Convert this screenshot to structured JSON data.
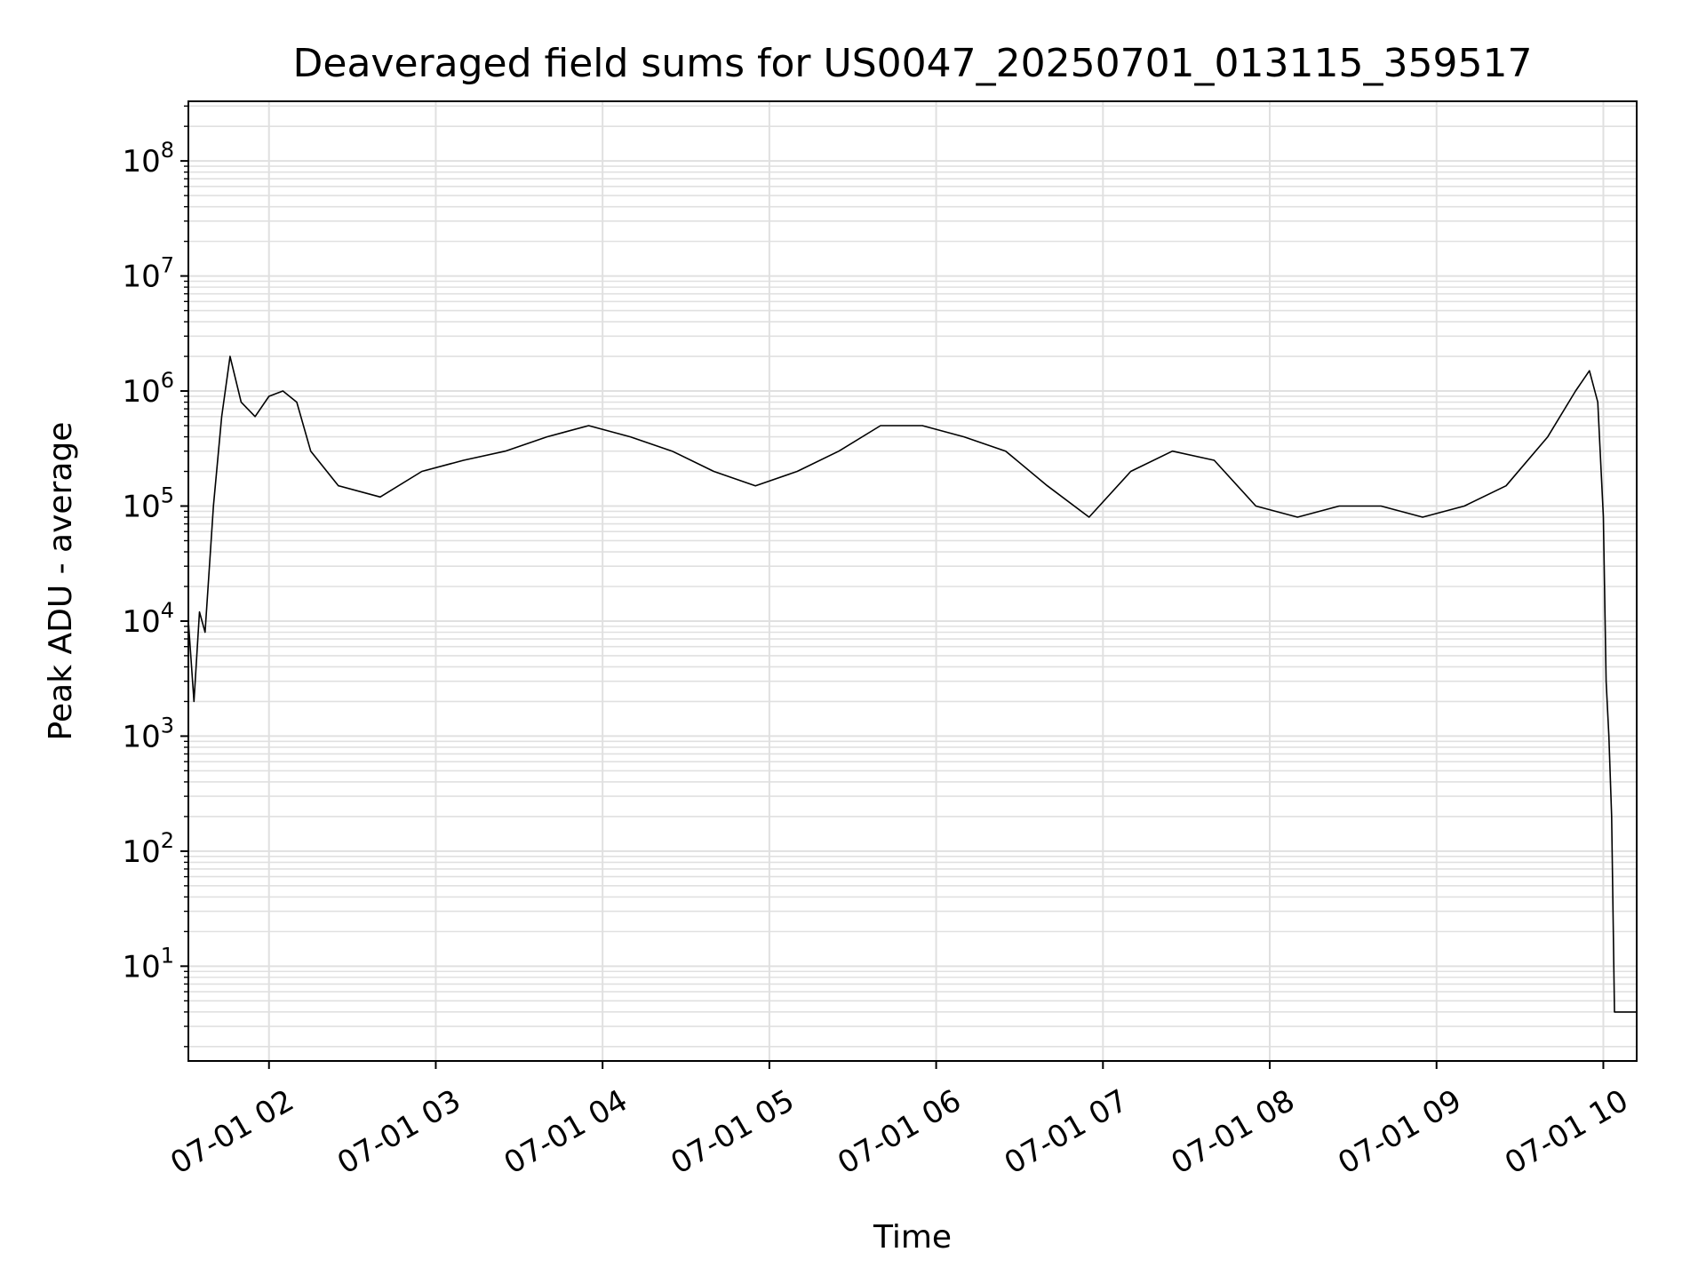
{
  "chart_data": {
    "type": "line",
    "title": "Deaveraged field sums for US0047_20250701_013115_359517",
    "xlabel": "Time",
    "ylabel": "Peak ADU - average",
    "y_scale": "log",
    "grid": true,
    "x_ticks": [
      "07-01 02",
      "07-01 03",
      "07-01 04",
      "07-01 05",
      "07-01 06",
      "07-01 07",
      "07-01 08",
      "07-01 09",
      "07-01 10"
    ],
    "y_ticks": [
      {
        "base": "10",
        "exp": "1"
      },
      {
        "base": "10",
        "exp": "2"
      },
      {
        "base": "10",
        "exp": "3"
      },
      {
        "base": "10",
        "exp": "4"
      },
      {
        "base": "10",
        "exp": "5"
      },
      {
        "base": "10",
        "exp": "6"
      },
      {
        "base": "10",
        "exp": "7"
      },
      {
        "base": "10",
        "exp": "8"
      }
    ],
    "xlim": [
      "2025-07-01 01:31",
      "2025-07-01 10:12"
    ],
    "ylim": [
      1.5,
      330000000
    ],
    "line_color": "#000000",
    "grid_color": "#e0e0e0",
    "series": [
      {
        "x": [
          "2025-07-01 01:31",
          "2025-07-01 01:33",
          "2025-07-01 01:35",
          "2025-07-01 01:37",
          "2025-07-01 01:40",
          "2025-07-01 01:43",
          "2025-07-01 01:46",
          "2025-07-01 01:50",
          "2025-07-01 01:55",
          "2025-07-01 02:00",
          "2025-07-01 02:05",
          "2025-07-01 02:10",
          "2025-07-01 02:15",
          "2025-07-01 02:25",
          "2025-07-01 02:40",
          "2025-07-01 02:55",
          "2025-07-01 03:10",
          "2025-07-01 03:25",
          "2025-07-01 03:40",
          "2025-07-01 03:55",
          "2025-07-01 04:10",
          "2025-07-01 04:25",
          "2025-07-01 04:40",
          "2025-07-01 04:55",
          "2025-07-01 05:10",
          "2025-07-01 05:25",
          "2025-07-01 05:40",
          "2025-07-01 05:55",
          "2025-07-01 06:10",
          "2025-07-01 06:25",
          "2025-07-01 06:40",
          "2025-07-01 06:55",
          "2025-07-01 07:10",
          "2025-07-01 07:25",
          "2025-07-01 07:40",
          "2025-07-01 07:55",
          "2025-07-01 08:10",
          "2025-07-01 08:25",
          "2025-07-01 08:40",
          "2025-07-01 08:55",
          "2025-07-01 09:10",
          "2025-07-01 09:25",
          "2025-07-01 09:40",
          "2025-07-01 09:50",
          "2025-07-01 09:55",
          "2025-07-01 09:58",
          "2025-07-01 10:00",
          "2025-07-01 10:01",
          "2025-07-01 10:02",
          "2025-07-01 10:03",
          "2025-07-01 10:04",
          "2025-07-01 10:12"
        ],
        "y": [
          10000,
          2000,
          12000,
          8000,
          100000,
          600000,
          2000000,
          800000,
          600000,
          900000,
          1000000,
          800000,
          300000,
          150000,
          120000,
          200000,
          250000,
          300000,
          400000,
          500000,
          400000,
          300000,
          200000,
          150000,
          200000,
          300000,
          500000,
          500000,
          400000,
          300000,
          150000,
          80000,
          200000,
          300000,
          250000,
          100000,
          80000,
          100000,
          100000,
          80000,
          100000,
          150000,
          400000,
          1000000,
          1500000,
          800000,
          80000,
          3000,
          1000,
          200,
          4,
          4
        ]
      }
    ]
  }
}
